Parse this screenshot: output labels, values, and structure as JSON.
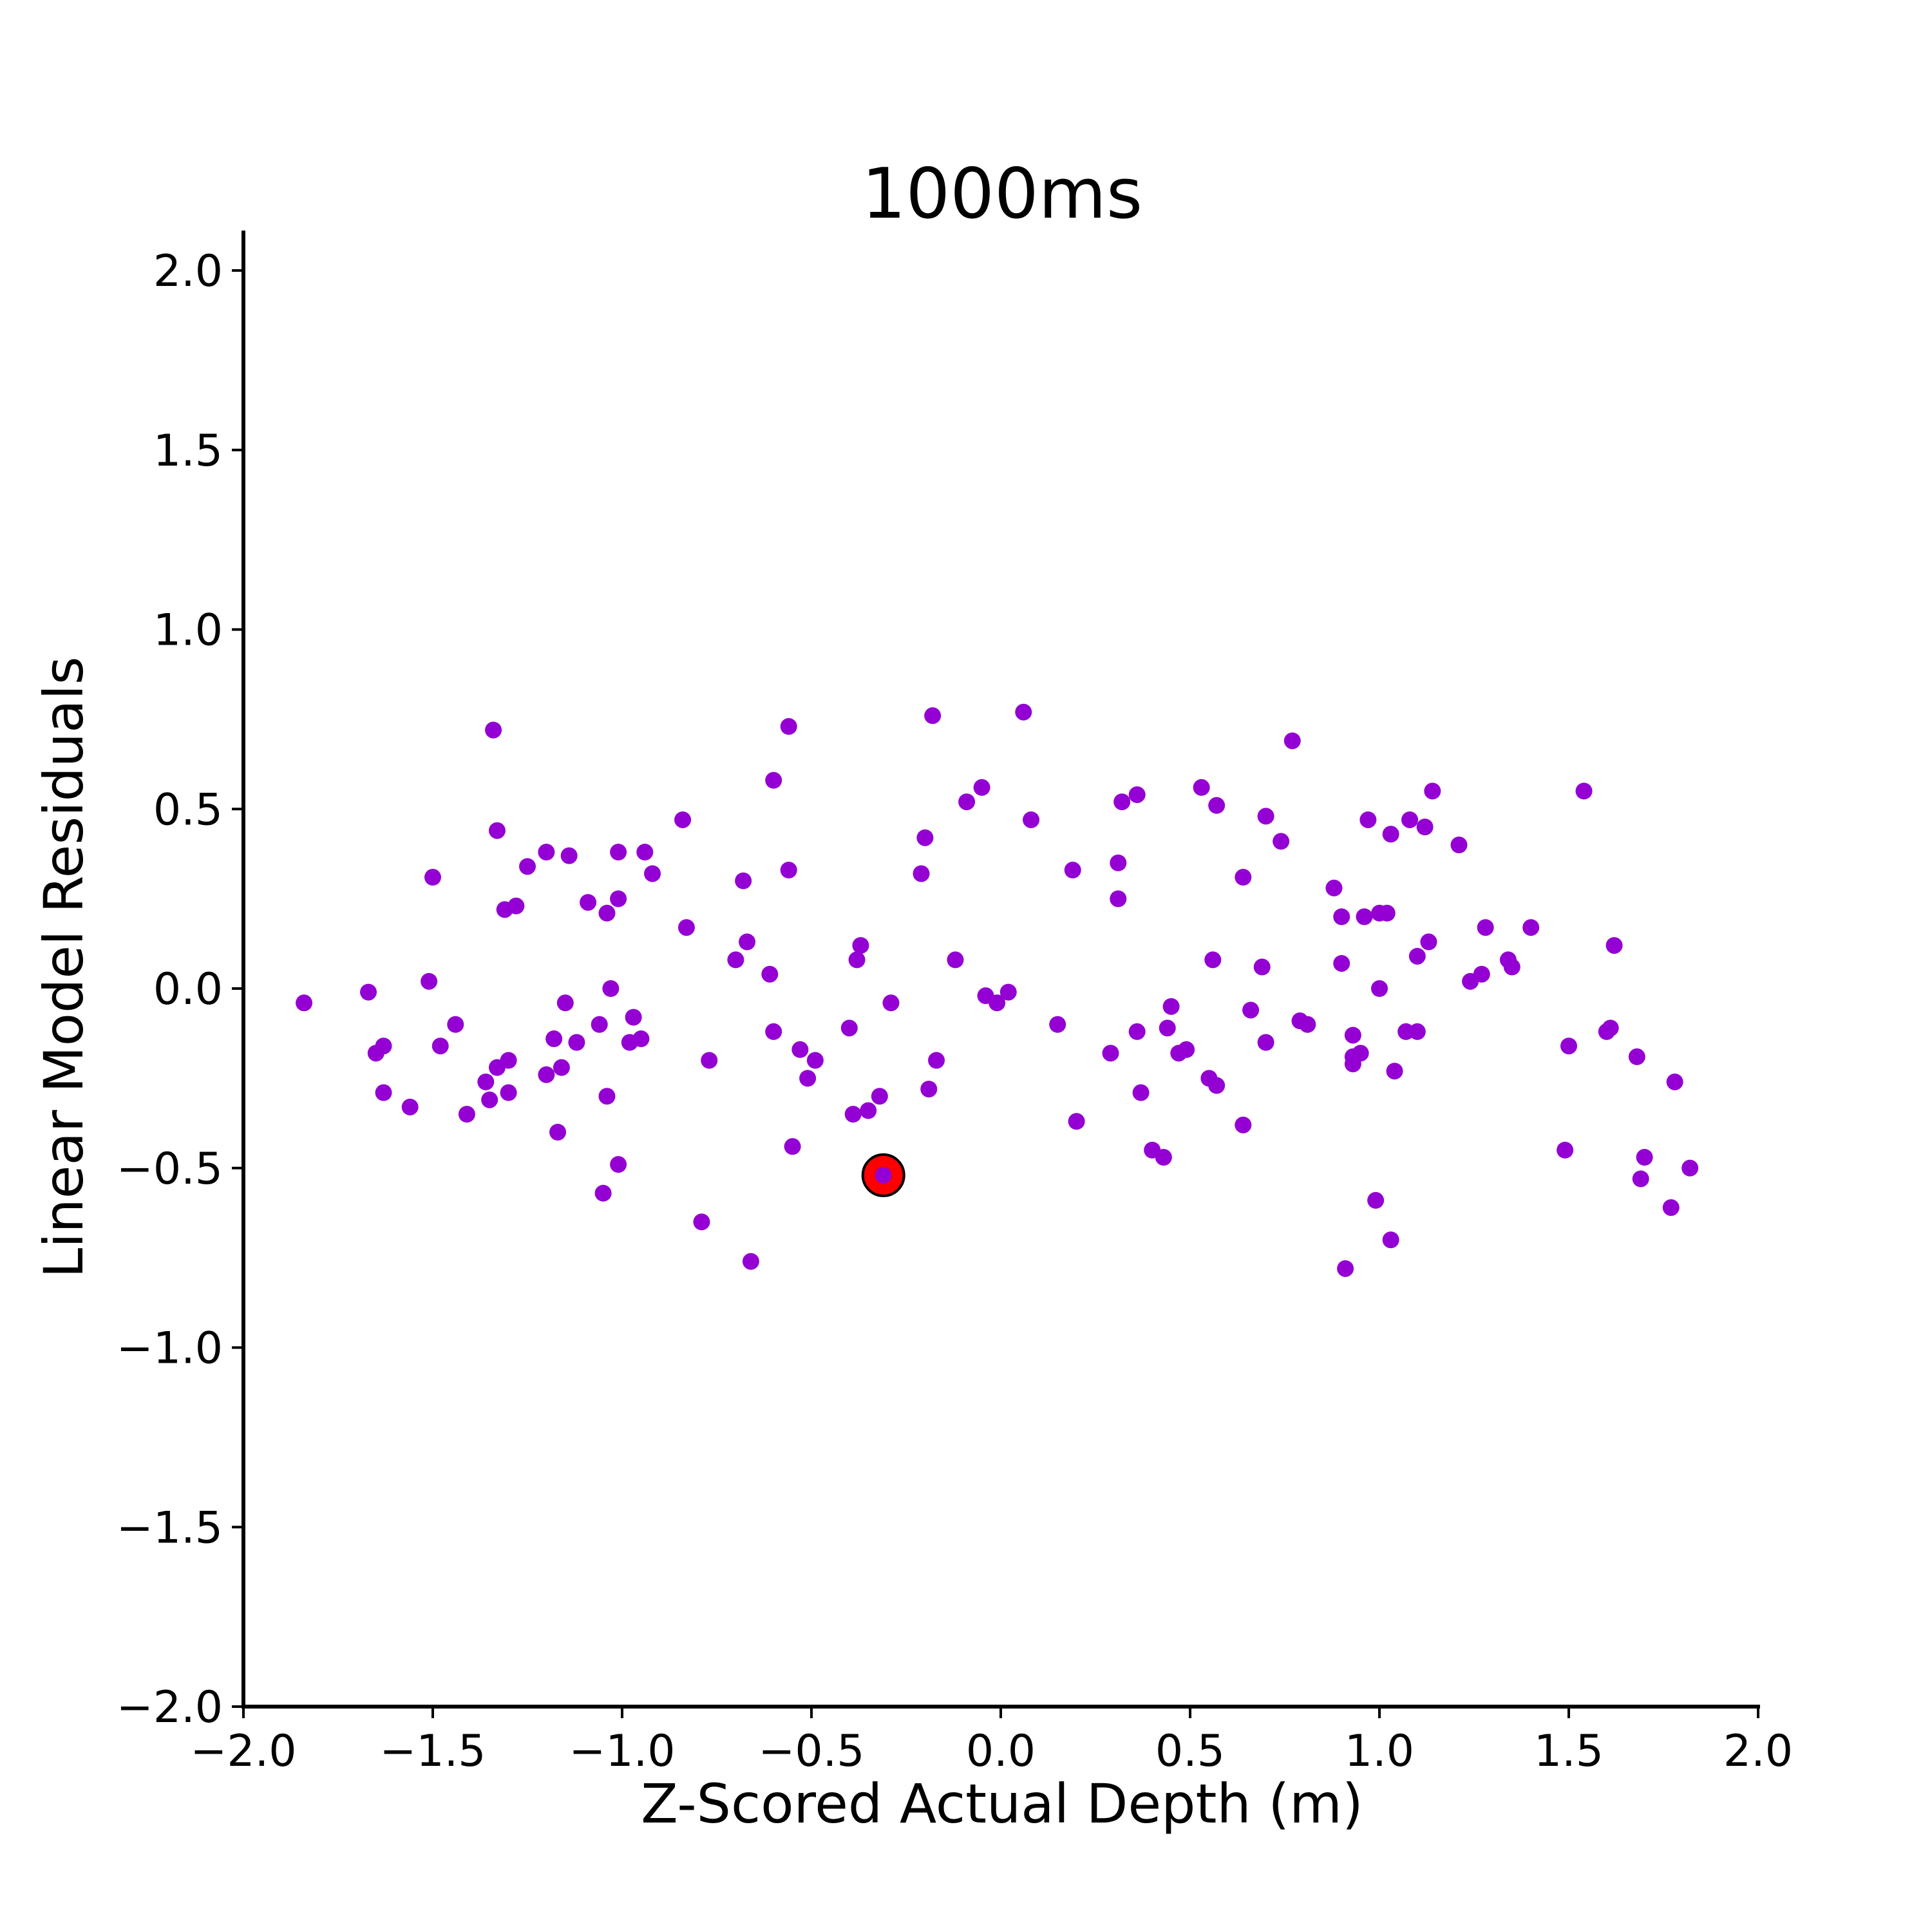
{
  "chart_data": {
    "type": "scatter",
    "title": "1000ms",
    "xlabel": "Z-Scored Actual Depth (m)",
    "ylabel": "Linear Model Residuals",
    "xlim": [
      -2.0,
      2.0
    ],
    "ylim": [
      -2.0,
      2.0
    ],
    "x_ticks": [
      -2.0,
      -1.5,
      -1.0,
      -0.5,
      0.0,
      0.5,
      1.0,
      1.5,
      2.0
    ],
    "y_ticks": [
      -2.0,
      -1.5,
      -1.0,
      -0.5,
      0.0,
      0.5,
      1.0,
      1.5,
      2.0
    ],
    "x_tick_labels": [
      "−2.0",
      "−1.5",
      "−1.0",
      "−0.5",
      "0.0",
      "0.5",
      "1.0",
      "1.5",
      "2.0"
    ],
    "y_tick_labels": [
      "−2.0",
      "−1.5",
      "−1.0",
      "−0.5",
      "0.0",
      "0.5",
      "1.0",
      "1.5",
      "2.0"
    ],
    "grid": false,
    "point_color": "#9400d3",
    "highlight_color": "#ff0000",
    "highlight_edge_color": "#000000",
    "points": [
      [
        -1.84,
        -0.04
      ],
      [
        -1.67,
        -0.01
      ],
      [
        -1.65,
        -0.18
      ],
      [
        -1.63,
        -0.16
      ],
      [
        -1.63,
        -0.29
      ],
      [
        -1.56,
        -0.33
      ],
      [
        -1.51,
        0.02
      ],
      [
        -1.5,
        0.31
      ],
      [
        -1.48,
        -0.16
      ],
      [
        -1.44,
        -0.1
      ],
      [
        -1.41,
        -0.35
      ],
      [
        -1.36,
        -0.26
      ],
      [
        -1.35,
        -0.31
      ],
      [
        -1.34,
        0.72
      ],
      [
        -1.33,
        -0.22
      ],
      [
        -1.33,
        0.44
      ],
      [
        -1.31,
        0.22
      ],
      [
        -1.3,
        -0.2
      ],
      [
        -1.3,
        -0.29
      ],
      [
        -1.28,
        0.23
      ],
      [
        -1.25,
        0.34
      ],
      [
        -1.2,
        0.38
      ],
      [
        -1.2,
        -0.24
      ],
      [
        -1.18,
        -0.14
      ],
      [
        -1.17,
        -0.4
      ],
      [
        -1.16,
        -0.22
      ],
      [
        -1.15,
        -0.04
      ],
      [
        -1.14,
        0.37
      ],
      [
        -1.12,
        -0.15
      ],
      [
        -1.09,
        0.24
      ],
      [
        -1.06,
        -0.1
      ],
      [
        -1.05,
        -0.57
      ],
      [
        -1.04,
        0.21
      ],
      [
        -1.04,
        -0.3
      ],
      [
        -1.03,
        0.0
      ],
      [
        -1.01,
        -0.49
      ],
      [
        -1.01,
        0.38
      ],
      [
        -1.01,
        0.25
      ],
      [
        -0.98,
        -0.15
      ],
      [
        -0.97,
        -0.08
      ],
      [
        -0.95,
        -0.14
      ],
      [
        -0.94,
        0.38
      ],
      [
        -0.92,
        0.32
      ],
      [
        -0.84,
        0.47
      ],
      [
        -0.83,
        0.17
      ],
      [
        -0.79,
        -0.65
      ],
      [
        -0.77,
        -0.2
      ],
      [
        -0.7,
        0.08
      ],
      [
        -0.68,
        0.3
      ],
      [
        -0.67,
        0.13
      ],
      [
        -0.66,
        -0.76
      ],
      [
        -0.61,
        0.04
      ],
      [
        -0.6,
        0.58
      ],
      [
        -0.6,
        -0.12
      ],
      [
        -0.56,
        0.33
      ],
      [
        -0.56,
        0.73
      ],
      [
        -0.55,
        -0.44
      ],
      [
        -0.53,
        -0.17
      ],
      [
        -0.51,
        -0.25
      ],
      [
        -0.49,
        -0.2
      ],
      [
        -0.4,
        -0.11
      ],
      [
        -0.39,
        -0.35
      ],
      [
        -0.38,
        0.08
      ],
      [
        -0.37,
        0.12
      ],
      [
        -0.35,
        -0.34
      ],
      [
        -0.32,
        -0.3
      ],
      [
        -0.31,
        -0.52
      ],
      [
        -0.29,
        -0.04
      ],
      [
        -0.21,
        0.32
      ],
      [
        -0.2,
        0.42
      ],
      [
        -0.19,
        -0.28
      ],
      [
        -0.18,
        0.76
      ],
      [
        -0.17,
        -0.2
      ],
      [
        -0.12,
        0.08
      ],
      [
        -0.09,
        0.52
      ],
      [
        -0.05,
        0.56
      ],
      [
        -0.04,
        -0.02
      ],
      [
        -0.01,
        -0.04
      ],
      [
        0.02,
        -0.01
      ],
      [
        0.06,
        0.77
      ],
      [
        0.08,
        0.47
      ],
      [
        0.15,
        -0.1
      ],
      [
        0.19,
        0.33
      ],
      [
        0.2,
        -0.37
      ],
      [
        0.29,
        -0.18
      ],
      [
        0.31,
        0.35
      ],
      [
        0.31,
        0.25
      ],
      [
        0.32,
        0.52
      ],
      [
        0.36,
        0.54
      ],
      [
        0.36,
        -0.12
      ],
      [
        0.37,
        -0.29
      ],
      [
        0.4,
        -0.45
      ],
      [
        0.43,
        -0.47
      ],
      [
        0.44,
        -0.11
      ],
      [
        0.45,
        -0.05
      ],
      [
        0.47,
        -0.18
      ],
      [
        0.49,
        -0.17
      ],
      [
        0.53,
        0.56
      ],
      [
        0.55,
        -0.25
      ],
      [
        0.56,
        0.08
      ],
      [
        0.57,
        -0.27
      ],
      [
        0.57,
        0.51
      ],
      [
        0.64,
        -0.38
      ],
      [
        0.64,
        0.31
      ],
      [
        0.66,
        -0.06
      ],
      [
        0.69,
        0.06
      ],
      [
        0.7,
        -0.15
      ],
      [
        0.7,
        0.48
      ],
      [
        0.74,
        0.41
      ],
      [
        0.77,
        0.69
      ],
      [
        0.79,
        -0.09
      ],
      [
        0.81,
        -0.1
      ],
      [
        0.88,
        0.28
      ],
      [
        0.9,
        0.2
      ],
      [
        0.9,
        0.07
      ],
      [
        0.91,
        -0.78
      ],
      [
        0.93,
        -0.13
      ],
      [
        0.93,
        -0.21
      ],
      [
        0.93,
        -0.19
      ],
      [
        0.95,
        -0.18
      ],
      [
        0.96,
        0.2
      ],
      [
        0.97,
        0.47
      ],
      [
        0.99,
        -0.59
      ],
      [
        1.0,
        0.0
      ],
      [
        1.0,
        0.21
      ],
      [
        1.02,
        0.21
      ],
      [
        1.03,
        -0.7
      ],
      [
        1.03,
        0.43
      ],
      [
        1.04,
        -0.23
      ],
      [
        1.07,
        -0.12
      ],
      [
        1.08,
        0.47
      ],
      [
        1.1,
        -0.12
      ],
      [
        1.1,
        0.09
      ],
      [
        1.12,
        0.45
      ],
      [
        1.13,
        0.13
      ],
      [
        1.14,
        0.55
      ],
      [
        1.21,
        0.4
      ],
      [
        1.24,
        0.02
      ],
      [
        1.27,
        0.04
      ],
      [
        1.28,
        0.17
      ],
      [
        1.34,
        0.08
      ],
      [
        1.35,
        0.06
      ],
      [
        1.4,
        0.17
      ],
      [
        1.49,
        -0.45
      ],
      [
        1.5,
        -0.16
      ],
      [
        1.54,
        0.55
      ],
      [
        1.6,
        -0.12
      ],
      [
        1.61,
        -0.11
      ],
      [
        1.62,
        0.12
      ],
      [
        1.68,
        -0.19
      ],
      [
        1.69,
        -0.53
      ],
      [
        1.7,
        -0.47
      ],
      [
        1.77,
        -0.61
      ],
      [
        1.78,
        -0.26
      ],
      [
        1.82,
        -0.5
      ]
    ],
    "highlight_point": [
      -0.31,
      -0.52
    ]
  }
}
